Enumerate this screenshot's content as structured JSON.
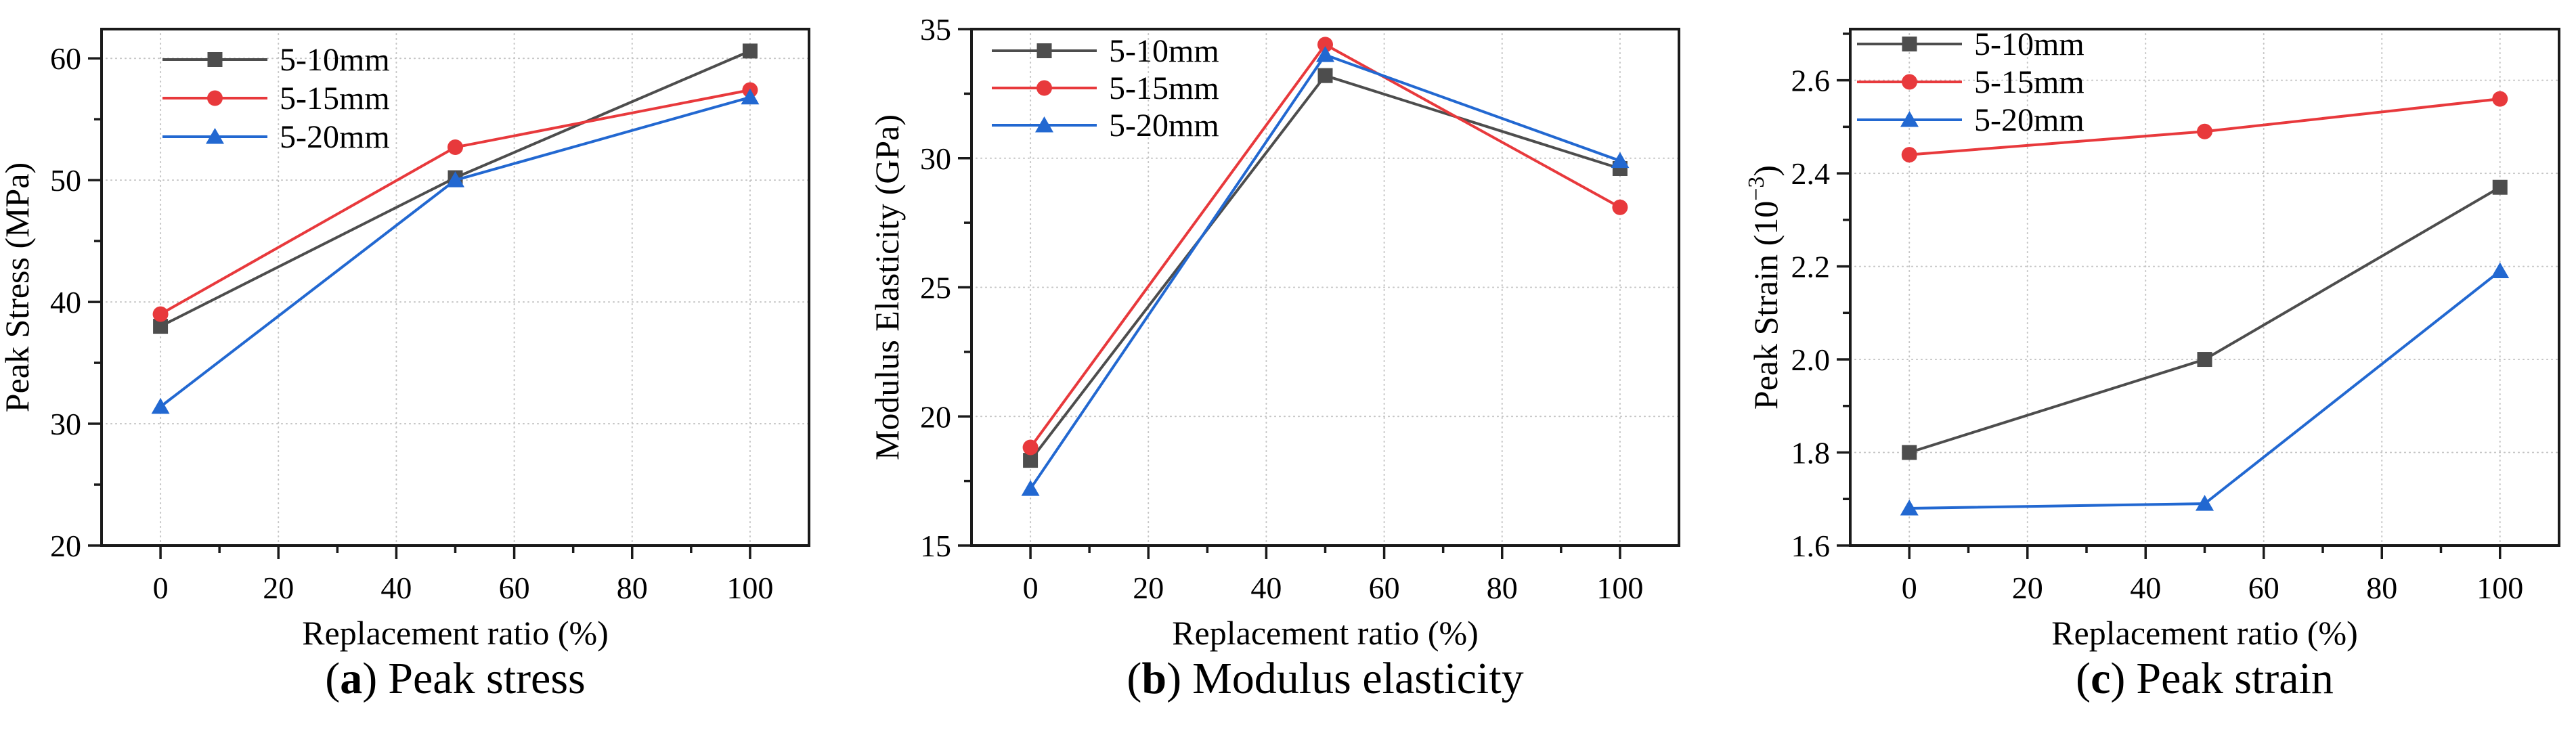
{
  "figure_type": "three-panel line chart figure",
  "background": "#ffffff",
  "chart_data": [
    {
      "id": "a",
      "type": "line",
      "caption_open": "(",
      "caption_letter": "a",
      "caption_close": ")",
      "caption_text": "Peak stress",
      "caption_full": "(a) Peak stress",
      "xlabel": "Replacement ratio (%)",
      "ylabel": "Peak Stress (MPa)",
      "x": [
        0,
        50,
        100
      ],
      "xlim": [
        -10,
        110
      ],
      "ylim": [
        20,
        62.4
      ],
      "xticks": [
        0,
        20,
        40,
        60,
        80,
        100
      ],
      "yticks": [
        20,
        30,
        40,
        50,
        60
      ],
      "ytick_labels": [
        "20",
        "30",
        "40",
        "50",
        "60"
      ],
      "x_minor_step": 10,
      "y_minor_step": 5,
      "grid": "dotted major",
      "legend_position": "top-left inside",
      "series": [
        {
          "name": "5-10mm",
          "marker": "square",
          "color": "#4d4d4d",
          "values": [
            38.0,
            50.2,
            60.6
          ]
        },
        {
          "name": "5-15mm",
          "marker": "circle",
          "color": "#e8393c",
          "values": [
            39.0,
            52.7,
            57.4
          ]
        },
        {
          "name": "5-20mm",
          "marker": "triangle",
          "color": "#2268d1",
          "values": [
            31.4,
            50.0,
            56.8
          ]
        }
      ]
    },
    {
      "id": "b",
      "type": "line",
      "caption_open": "(",
      "caption_letter": "b",
      "caption_close": ")",
      "caption_text": "Modulus elasticity",
      "caption_full": "(b) Modulus elasticity",
      "xlabel": "Replacement ratio (%)",
      "ylabel": "Modulus Elasticity (GPa)",
      "x": [
        0,
        50,
        100
      ],
      "xlim": [
        -10,
        110
      ],
      "ylim": [
        15,
        35
      ],
      "xticks": [
        0,
        20,
        40,
        60,
        80,
        100
      ],
      "yticks": [
        15,
        20,
        25,
        30,
        35
      ],
      "ytick_labels": [
        "15",
        "20",
        "25",
        "30",
        "35"
      ],
      "x_minor_step": 10,
      "y_minor_step": 2.5,
      "grid": "dotted major",
      "legend_position": "top-left inside",
      "series": [
        {
          "name": "5-10mm",
          "marker": "square",
          "color": "#4d4d4d",
          "values": [
            18.3,
            33.2,
            29.6
          ]
        },
        {
          "name": "5-15mm",
          "marker": "circle",
          "color": "#e8393c",
          "values": [
            18.8,
            34.4,
            28.1
          ]
        },
        {
          "name": "5-20mm",
          "marker": "triangle",
          "color": "#2268d1",
          "values": [
            17.2,
            34.0,
            29.9
          ]
        }
      ]
    },
    {
      "id": "c",
      "type": "line",
      "caption_open": "(",
      "caption_letter": "c",
      "caption_close": ")",
      "caption_text": "Peak strain",
      "caption_full": "(c) Peak strain",
      "xlabel": "Replacement ratio (%)",
      "ylabel": "Peak Strain (10⁻³)",
      "ylabel_pre": "Peak Strain (10",
      "ylabel_sup": "−3",
      "ylabel_post": ")",
      "x": [
        0,
        50,
        100
      ],
      "xlim": [
        -10,
        110
      ],
      "ylim": [
        1.6,
        2.71
      ],
      "xticks": [
        0,
        20,
        40,
        60,
        80,
        100
      ],
      "yticks": [
        1.6,
        1.8,
        2.0,
        2.2,
        2.4,
        2.6
      ],
      "ytick_labels": [
        "1.6",
        "1.8",
        "2.0",
        "2.2",
        "2.4",
        "2.6"
      ],
      "x_minor_step": 10,
      "y_minor_step": 0.1,
      "grid": "dotted major",
      "legend_position": "top-left inside",
      "series": [
        {
          "name": "5-10mm",
          "marker": "square",
          "color": "#4d4d4d",
          "values": [
            1.8,
            2.0,
            2.37
          ]
        },
        {
          "name": "5-15mm",
          "marker": "circle",
          "color": "#e8393c",
          "values": [
            2.44,
            2.49,
            2.56
          ]
        },
        {
          "name": "5-20mm",
          "marker": "triangle",
          "color": "#2268d1",
          "values": [
            1.68,
            1.69,
            2.19
          ]
        }
      ]
    }
  ]
}
